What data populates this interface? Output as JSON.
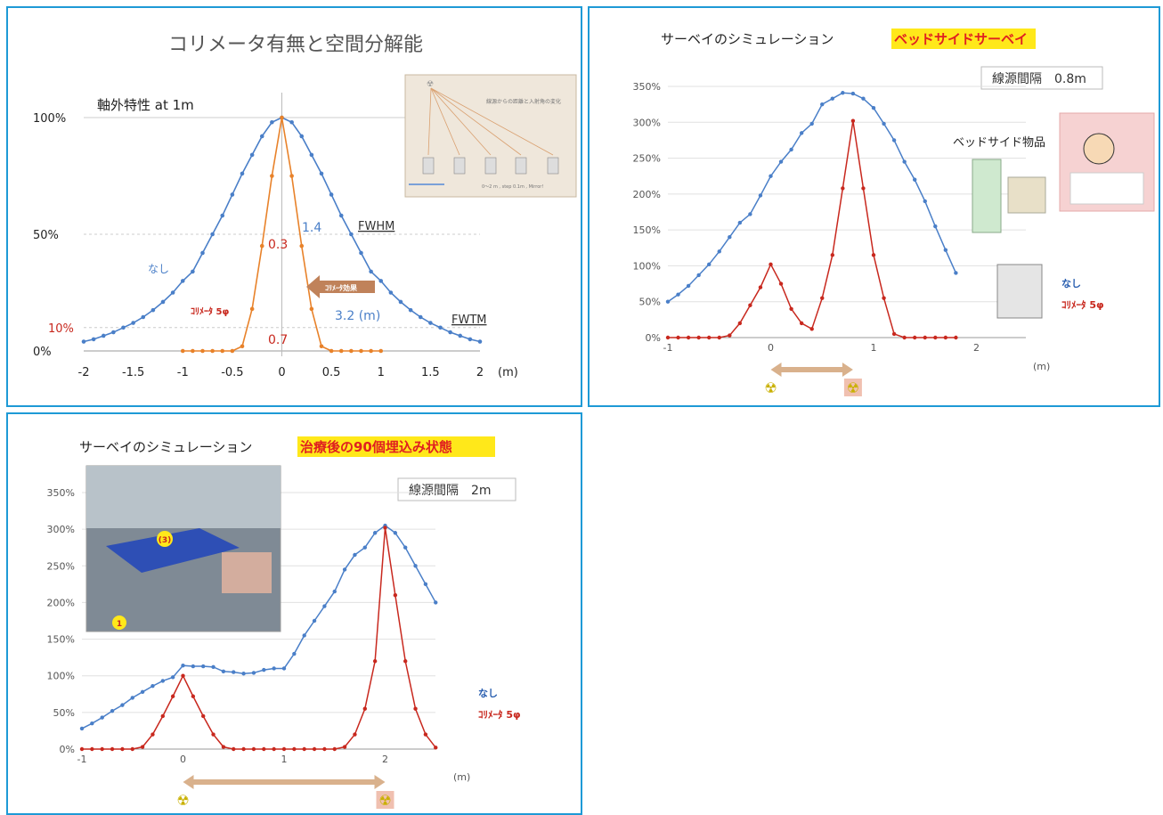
{
  "colors": {
    "blue": "#4a7fc8",
    "red": "#c8281e",
    "orange": "#e8822a",
    "grid": "#d9d9d9",
    "border": "#1e9ad6",
    "highlight": "#ffe81a",
    "arrow": "#d9b18c"
  },
  "chart_data": [
    {
      "type": "line",
      "title": "コリメータ有無と空間分解能",
      "subtitle": "軸外特性 at 1m",
      "xlabel": "(m)",
      "x_ticks": [
        "-2",
        "-1.5",
        "-1",
        "-0.5",
        "0",
        "0.5",
        "1",
        "1.5",
        "2"
      ],
      "y_ticks": [
        "100%",
        "50%",
        "10%",
        "0%"
      ],
      "ylim": [
        0,
        1
      ],
      "series": [
        {
          "name": "なし",
          "color": "#4a7fc8",
          "x": [
            -2,
            -1.9,
            -1.8,
            -1.7,
            -1.6,
            -1.5,
            -1.4,
            -1.3,
            -1.2,
            -1.1,
            -1,
            -0.9,
            -0.8,
            -0.7,
            -0.6,
            -0.5,
            -0.4,
            -0.3,
            -0.2,
            -0.1,
            0,
            0.1,
            0.2,
            0.3,
            0.4,
            0.5,
            0.6,
            0.7,
            0.8,
            0.9,
            1,
            1.1,
            1.2,
            1.3,
            1.4,
            1.5,
            1.6,
            1.7,
            1.8,
            1.9,
            2
          ],
          "y": [
            0.04,
            0.05,
            0.065,
            0.08,
            0.1,
            0.12,
            0.145,
            0.175,
            0.21,
            0.25,
            0.3,
            0.34,
            0.42,
            0.5,
            0.58,
            0.67,
            0.76,
            0.84,
            0.92,
            0.98,
            1.0,
            0.98,
            0.92,
            0.84,
            0.76,
            0.67,
            0.58,
            0.5,
            0.42,
            0.34,
            0.3,
            0.25,
            0.21,
            0.175,
            0.145,
            0.12,
            0.1,
            0.08,
            0.065,
            0.05,
            0.04
          ]
        },
        {
          "name": "ｺﾘﾒｰﾀ 5φ",
          "color": "#e8822a",
          "x": [
            -1,
            -0.9,
            -0.8,
            -0.7,
            -0.6,
            -0.5,
            -0.4,
            -0.3,
            -0.2,
            -0.1,
            0,
            0.1,
            0.2,
            0.3,
            0.4,
            0.5,
            0.6,
            0.7,
            0.8,
            0.9,
            1
          ],
          "y": [
            0,
            0,
            0,
            0,
            0,
            0,
            0.02,
            0.18,
            0.45,
            0.75,
            1.0,
            0.75,
            0.45,
            0.18,
            0.02,
            0,
            0,
            0,
            0,
            0,
            0
          ]
        }
      ],
      "annotations": {
        "fwhm_value": "1.4",
        "fwhm_label": "FWHM",
        "fwtm_value": "3.2 (m)",
        "fwtm_label": "FWTM",
        "col_fwhm": "0.3",
        "col_fwtm": "0.7",
        "collimator_effect": "ｺﾘﾒｰﾀ効果",
        "label_none": "なし",
        "label_col": "ｺﾘﾒｰﾀ 5φ",
        "inset_text": "線源からの距離と入射角の変化",
        "inset_sub": "0～2 m , step 0.1m , Mirror!",
        "inset_tag": "1m\n線源"
      }
    },
    {
      "type": "line",
      "title": "サーベイのシミュレーション",
      "highlight": "ベッドサイドサーベイ",
      "box_label": "線源間隔　0.8m",
      "side_label": "ベッドサイド物品",
      "xlabel": "(m)",
      "x_ticks": [
        "-1",
        "0",
        "1",
        "2"
      ],
      "y_ticks": [
        "350%",
        "300%",
        "250%",
        "200%",
        "150%",
        "100%",
        "50%",
        "0%"
      ],
      "ylim": [
        0,
        3.5
      ],
      "legend": [
        "なし",
        "ｺﾘﾒｰﾀ 5φ"
      ],
      "series": [
        {
          "name": "なし",
          "color": "#4a7fc8",
          "x": [
            -1,
            -0.9,
            -0.8,
            -0.7,
            -0.6,
            -0.5,
            -0.4,
            -0.3,
            -0.2,
            -0.1,
            0,
            0.1,
            0.2,
            0.3,
            0.4,
            0.5,
            0.6,
            0.7,
            0.8,
            0.9,
            1,
            1.1,
            1.2,
            1.3,
            1.4,
            1.5,
            1.6,
            1.7,
            1.8
          ],
          "y": [
            0.5,
            0.6,
            0.72,
            0.87,
            1.02,
            1.2,
            1.4,
            1.6,
            1.72,
            1.98,
            2.25,
            2.45,
            2.62,
            2.85,
            2.98,
            3.25,
            3.33,
            3.41,
            3.4,
            3.33,
            3.2,
            2.98,
            2.75,
            2.45,
            2.2,
            1.9,
            1.55,
            1.22,
            0.9
          ]
        },
        {
          "name": "ｺﾘﾒｰﾀ 5φ",
          "color": "#c8281e",
          "x": [
            -1,
            -0.9,
            -0.8,
            -0.7,
            -0.6,
            -0.5,
            -0.4,
            -0.3,
            -0.2,
            -0.1,
            0,
            0.1,
            0.2,
            0.3,
            0.4,
            0.5,
            0.6,
            0.7,
            0.8,
            0.9,
            1,
            1.1,
            1.2,
            1.3,
            1.4,
            1.5,
            1.6,
            1.7,
            1.8
          ],
          "y": [
            0,
            0,
            0,
            0,
            0,
            0,
            0.03,
            0.2,
            0.45,
            0.7,
            1.02,
            0.75,
            0.4,
            0.2,
            0.12,
            0.55,
            1.15,
            2.08,
            3.02,
            2.08,
            1.15,
            0.55,
            0.05,
            0,
            0,
            0,
            0,
            0,
            0
          ]
        }
      ]
    },
    {
      "type": "line",
      "title": "サーベイのシミュレーション",
      "highlight": "治療後の90個埋込み状態",
      "box_label": "線源間隔　2m",
      "xlabel": "(m)",
      "x_ticks": [
        "-1",
        "0",
        "1",
        "2"
      ],
      "y_ticks": [
        "350%",
        "300%",
        "250%",
        "200%",
        "150%",
        "100%",
        "50%",
        "0%"
      ],
      "ylim": [
        0,
        3.5
      ],
      "legend": [
        "なし",
        "ｺﾘﾒｰﾀ 5φ"
      ],
      "photo_labels": [
        "(3)",
        "1"
      ],
      "series": [
        {
          "name": "なし",
          "color": "#4a7fc8",
          "x": [
            -1,
            -0.9,
            -0.8,
            -0.7,
            -0.6,
            -0.5,
            -0.4,
            -0.3,
            -0.2,
            -0.1,
            0,
            0.1,
            0.2,
            0.3,
            0.4,
            0.5,
            0.6,
            0.7,
            0.8,
            0.9,
            1,
            1.1,
            1.2,
            1.3,
            1.4,
            1.5,
            1.6,
            1.7,
            1.8,
            1.9,
            2,
            2.1,
            2.2,
            2.3,
            2.4,
            2.5
          ],
          "y": [
            0.28,
            0.35,
            0.43,
            0.52,
            0.6,
            0.7,
            0.78,
            0.86,
            0.93,
            0.98,
            1.14,
            1.13,
            1.13,
            1.12,
            1.06,
            1.05,
            1.03,
            1.04,
            1.08,
            1.1,
            1.1,
            1.3,
            1.55,
            1.75,
            1.95,
            2.15,
            2.45,
            2.65,
            2.75,
            2.95,
            3.05,
            2.95,
            2.75,
            2.5,
            2.25,
            2.0
          ]
        },
        {
          "name": "ｺﾘﾒｰﾀ 5φ",
          "color": "#c8281e",
          "x": [
            -1,
            -0.9,
            -0.8,
            -0.7,
            -0.6,
            -0.5,
            -0.4,
            -0.3,
            -0.2,
            -0.1,
            0,
            0.1,
            0.2,
            0.3,
            0.4,
            0.5,
            0.6,
            0.7,
            0.8,
            0.9,
            1,
            1.1,
            1.2,
            1.3,
            1.4,
            1.5,
            1.6,
            1.7,
            1.8,
            1.9,
            2,
            2.1,
            2.2,
            2.3,
            2.4,
            2.5
          ],
          "y": [
            0,
            0,
            0,
            0,
            0,
            0,
            0.03,
            0.2,
            0.45,
            0.72,
            1.0,
            0.72,
            0.45,
            0.2,
            0.03,
            0,
            0,
            0,
            0,
            0,
            0,
            0,
            0,
            0,
            0,
            0,
            0.03,
            0.2,
            0.55,
            1.2,
            3.02,
            2.1,
            1.2,
            0.55,
            0.2,
            0.02
          ]
        }
      ]
    }
  ]
}
